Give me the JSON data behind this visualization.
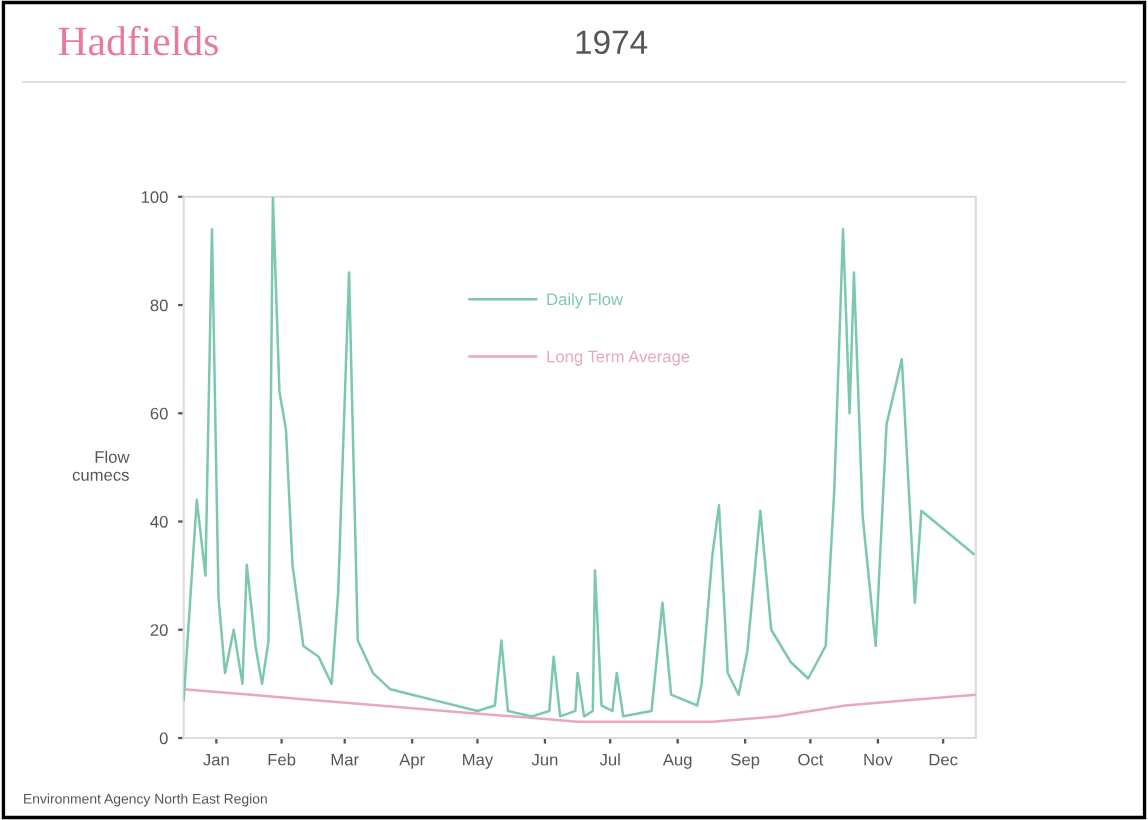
{
  "chart_data": {
    "type": "line",
    "title": "Hadfields",
    "subtitle": "1974",
    "ylabel": "Flow\ncumecs",
    "annotations": [
      "Environment Agency North East Region"
    ],
    "xlim": [
      "1974-01-01",
      "1974-12-31"
    ],
    "xticks": [
      {
        "value": "1974-01-16",
        "label": "Jan"
      },
      {
        "value": "1974-02-15",
        "label": "Feb"
      },
      {
        "value": "1974-03-16",
        "label": "Mar"
      },
      {
        "value": "1974-04-16",
        "label": "Apr"
      },
      {
        "value": "1974-05-16",
        "label": "May"
      },
      {
        "value": "1974-06-16",
        "label": "Jun"
      },
      {
        "value": "1974-07-16",
        "label": "Jul"
      },
      {
        "value": "1974-08-16",
        "label": "Aug"
      },
      {
        "value": "1974-09-16",
        "label": "Sep"
      },
      {
        "value": "1974-10-16",
        "label": "Oct"
      },
      {
        "value": "1974-11-16",
        "label": "Nov"
      },
      {
        "value": "1974-12-16",
        "label": "Dec"
      }
    ],
    "ylim": [
      0,
      100
    ],
    "yticks": [
      0,
      20,
      40,
      60,
      80,
      100
    ],
    "grid": false,
    "legend": "top",
    "marker": "none",
    "line_style": "solid",
    "series": [
      {
        "name": "Daily Flow",
        "color": "#7cc7b0",
        "x": [
          "1974-01-01",
          "1974-01-07",
          "1974-01-11",
          "1974-01-14",
          "1974-01-17",
          "1974-01-20",
          "1974-01-24",
          "1974-01-28",
          "1974-01-30",
          "1974-02-03",
          "1974-02-06",
          "1974-02-09",
          "1974-02-11",
          "1974-02-14",
          "1974-02-17",
          "1974-02-20",
          "1974-02-25",
          "1974-03-04",
          "1974-03-10",
          "1974-03-13",
          "1974-03-18",
          "1974-03-22",
          "1974-03-29",
          "1974-04-06",
          "1974-04-16",
          "1974-04-26",
          "1974-05-06",
          "1974-05-16",
          "1974-05-24",
          "1974-05-27",
          "1974-05-30",
          "1974-06-10",
          "1974-06-18",
          "1974-06-20",
          "1974-06-23",
          "1974-06-30",
          "1974-07-01",
          "1974-07-04",
          "1974-07-08",
          "1974-07-09",
          "1974-07-12",
          "1974-07-17",
          "1974-07-19",
          "1974-07-22",
          "1974-08-04",
          "1974-08-09",
          "1974-08-13",
          "1974-08-25",
          "1974-08-27",
          "1974-09-01",
          "1974-09-04",
          "1974-09-08",
          "1974-09-13",
          "1974-09-17",
          "1974-09-23",
          "1974-09-28",
          "1974-10-07",
          "1974-10-15",
          "1974-10-23",
          "1974-10-27",
          "1974-10-31",
          "1974-11-03",
          "1974-11-05",
          "1974-11-09",
          "1974-11-15",
          "1974-11-20",
          "1974-11-27",
          "1974-12-03",
          "1974-12-06",
          "1974-12-30"
        ],
        "values": [
          7,
          44,
          30,
          94,
          26,
          12,
          20,
          10,
          32,
          17,
          10,
          18,
          100,
          64,
          57,
          32,
          17,
          15,
          10,
          27,
          86,
          18,
          12,
          9,
          8,
          7,
          6,
          5,
          6,
          18,
          5,
          4,
          5,
          15,
          4,
          5,
          12,
          4,
          5,
          31,
          6,
          5,
          12,
          4,
          5,
          25,
          8,
          6,
          10,
          34,
          43,
          12,
          8,
          16,
          42,
          20,
          14,
          11,
          17,
          46,
          94,
          60,
          86,
          41,
          17,
          58,
          70,
          25,
          42,
          34
        ]
      },
      {
        "name": "Long Term Average",
        "color": "#e8a8b8",
        "x": [
          "1974-01-01",
          "1974-02-01",
          "1974-03-01",
          "1974-04-01",
          "1974-05-01",
          "1974-06-01",
          "1974-07-01",
          "1974-08-01",
          "1974-09-01",
          "1974-10-01",
          "1974-11-01",
          "1974-12-01",
          "1974-12-31"
        ],
        "values": [
          9,
          8,
          7,
          6,
          5,
          4,
          3,
          3,
          3,
          4,
          6,
          7,
          8
        ]
      }
    ]
  }
}
